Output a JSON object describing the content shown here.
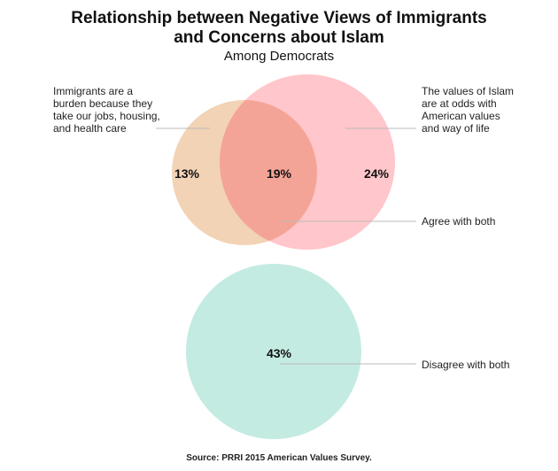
{
  "title_line1": "Relationship between Negative Views of Immigrants",
  "title_line2": "and Concerns about Islam",
  "subtitle": "Among Democrats",
  "sets": {
    "immigrants": {
      "label": "Immigrants are a burden because they take our jobs, housing, and health care",
      "label_lines": [
        "Immigrants are a",
        "burden because they",
        "take our jobs, housing,",
        "and health care"
      ],
      "only_value": "13%",
      "color": "#f2d3b5"
    },
    "islam": {
      "label": "The values of Islam are at odds with American values and way of life",
      "label_lines": [
        "The values of Islam",
        "are at odds with",
        "American values",
        "and way of life"
      ],
      "only_value": "24%",
      "color": "#ffc6cb"
    },
    "both": {
      "label": "Agree with both",
      "value": "19%",
      "color": "#f4a496"
    },
    "neither": {
      "label": "Disagree with both",
      "value": "43%",
      "color": "#c3ebe1"
    }
  },
  "source": "Source: PRRI 2015 American Values Survey."
}
